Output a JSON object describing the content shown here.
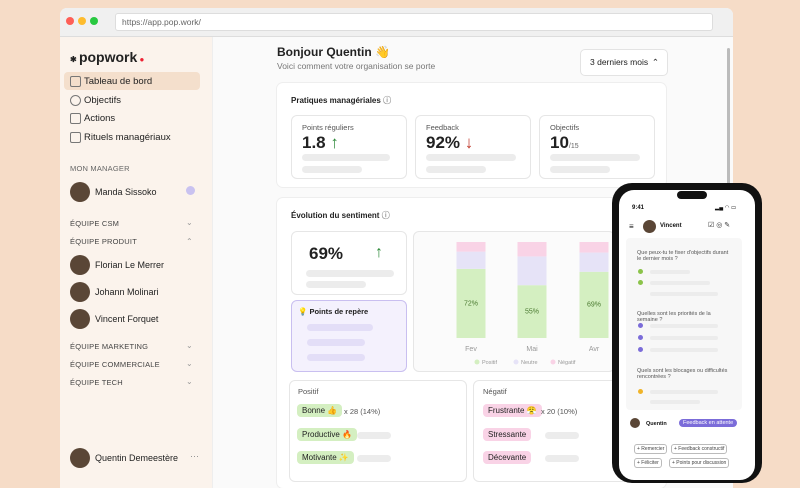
{
  "browser": {
    "url": "https://app.pop.work/"
  },
  "sidebar": {
    "logo": "popwork",
    "nav": [
      "Tableau de bord",
      "Objectifs",
      "Actions",
      "Rituels managériaux"
    ],
    "manager_heading": "MON MANAGER",
    "manager": "Manda Sissoko",
    "teams": [
      "ÉQUIPE CSM",
      "ÉQUIPE PRODUIT",
      "ÉQUIPE MARKETING",
      "ÉQUIPE COMMERCIALE",
      "ÉQUIPE TECH"
    ],
    "members": [
      "Florian Le Merrer",
      "Johann Molinari",
      "Vincent Forquet"
    ],
    "user": "Quentin Demeestère"
  },
  "header": {
    "title": "Bonjour Quentin 👋",
    "subtitle": "Voici comment votre organisation se porte",
    "period": "3 derniers mois"
  },
  "practices": {
    "title": "Pratiques managériales",
    "stats": [
      {
        "label": "Points réguliers",
        "value": "1.8"
      },
      {
        "label": "Feedback",
        "value": "92%"
      },
      {
        "label": "Objectifs",
        "value": "10",
        "suffix": "/15"
      }
    ]
  },
  "sentiment": {
    "title": "Évolution du sentiment",
    "score": "69%",
    "landmarks": "Points de repère",
    "chart_data": {
      "type": "bar",
      "stacked": true,
      "categories": [
        "Fev",
        "Mai",
        "Avr"
      ],
      "series": [
        {
          "name": "Positif",
          "color": "#d4efc1",
          "values": [
            72,
            55,
            69
          ],
          "value_labels": [
            "72%",
            "55%",
            "69%"
          ]
        },
        {
          "name": "Neutre",
          "color": "#e6e3f7",
          "values": [
            18,
            30,
            20
          ]
        },
        {
          "name": "Négatif",
          "color": "#f9d3e6",
          "values": [
            10,
            15,
            11
          ]
        }
      ],
      "ylim": [
        0,
        100
      ]
    }
  },
  "words": {
    "positive": {
      "title": "Positif",
      "items": [
        "Bonne 👍",
        "Productive 🔥",
        "Motivante ✨"
      ],
      "count": "x 28 (14%)"
    },
    "negative": {
      "title": "Négatif",
      "items": [
        "Frustrante 😤",
        "Stressante",
        "Décevante"
      ],
      "count": "x 20 (10%)"
    }
  },
  "phone": {
    "time": "9:41",
    "name": "Vincent",
    "questions": [
      "Que peux-tu te fixer d'objectifs durant le dernier mois ?",
      "Quelles sont les priorités de la semaine ?",
      "Quels sont les blocages ou difficultés rencontrées ?"
    ],
    "author": "Quentin",
    "status": "Feedback en attente",
    "actions": [
      "+ Remercier",
      "+ Feedback constructif",
      "+ Féliciter",
      "+ Points pour discussion"
    ]
  }
}
